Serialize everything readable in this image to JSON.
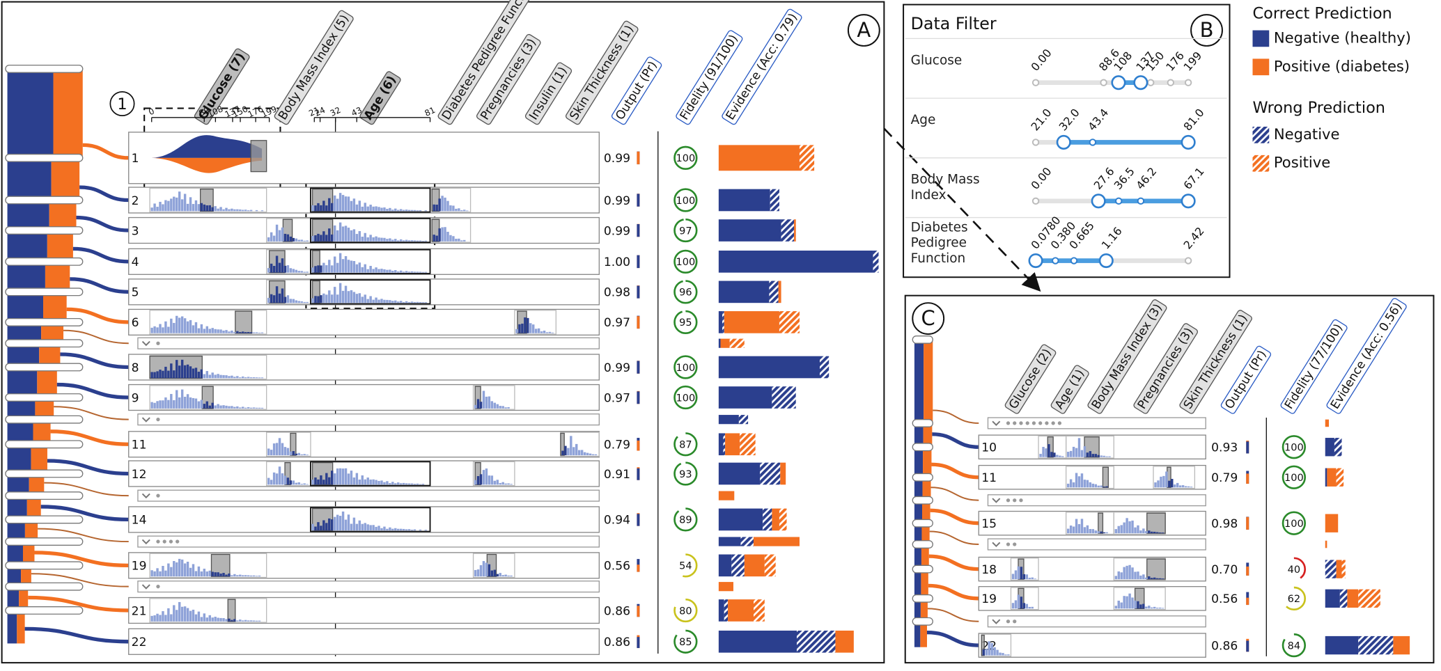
{
  "panel_a": {
    "label": "A",
    "markers": [
      "1",
      "2"
    ],
    "columns": [
      "Glucose (7)",
      "Body Mass Index (5)",
      "Age (6)",
      "Diabetes Pedigree Function",
      "Pregnancies (3)",
      "Insulin (1)",
      "Skin Thickness (1)",
      "Output (Pr)",
      "Fidelity (91/100)",
      "Evidence (Acc: 0.79)"
    ],
    "glucose_ticks": [
      0,
      89,
      108,
      137,
      150,
      176,
      199
    ],
    "age_ticks": [
      21,
      24,
      32,
      43,
      81
    ],
    "rows": [
      {
        "id": "1",
        "output": 0.99,
        "color": "#f37021",
        "fidelity": 100,
        "evidence": [
          0,
          0,
          88,
          16
        ]
      },
      {
        "id": "2",
        "output": 0.99,
        "color": "#2b3f8e",
        "fidelity": 100,
        "evidence": [
          56,
          10,
          0,
          0
        ]
      },
      {
        "id": "3",
        "output": 0.99,
        "color": "#2b3f8e",
        "fidelity": 97,
        "evidence": [
          68,
          14,
          2,
          0
        ]
      },
      {
        "id": "4",
        "output": 1,
        "output_label": "1.00",
        "color": "#2b3f8e",
        "fidelity": 100,
        "evidence": [
          168,
          6,
          0,
          0
        ]
      },
      {
        "id": "5",
        "output": 0.98,
        "color": "#2b3f8e",
        "fidelity": 96,
        "evidence": [
          55,
          10,
          3,
          0
        ]
      },
      {
        "id": "6",
        "output": 0.97,
        "color": "#f37021",
        "fidelity": 95,
        "evidence": [
          4,
          2,
          60,
          22
        ]
      },
      {
        "id": null,
        "evidence": [
          2,
          0,
          10,
          16
        ]
      },
      {
        "id": "8",
        "output": 0.99,
        "color": "#2b3f8e",
        "fidelity": 100,
        "evidence": [
          110,
          10,
          0,
          0
        ]
      },
      {
        "id": "9",
        "output": 0.97,
        "color": "#2b3f8e",
        "fidelity": 100,
        "evidence": [
          58,
          26,
          0,
          0
        ]
      },
      {
        "id": null,
        "evidence": [
          22,
          10,
          0,
          0
        ]
      },
      {
        "id": "11",
        "output": 0.79,
        "color": "#f37021",
        "fidelity": 87,
        "evidence": [
          5,
          2,
          16,
          17
        ]
      },
      {
        "id": "12",
        "output": 0.91,
        "color": "#2b3f8e",
        "fidelity": 93,
        "evidence": [
          45,
          22,
          6,
          0
        ]
      },
      {
        "id": null,
        "evidence": [
          0,
          0,
          17,
          0
        ]
      },
      {
        "id": "14",
        "output": 0.94,
        "color": "#2b3f8e",
        "fidelity": 89,
        "evidence": [
          48,
          10,
          8,
          8
        ]
      },
      {
        "id": null,
        "evidence": [
          24,
          14,
          50,
          0
        ]
      },
      {
        "id": "19",
        "output": 0.56,
        "color": "#f37021",
        "fidelity": 54,
        "evidence": [
          14,
          14,
          22,
          12
        ]
      },
      {
        "id": null,
        "evidence": [
          0,
          0,
          16,
          0
        ]
      },
      {
        "id": "21",
        "output": 0.86,
        "color": "#f37021",
        "fidelity": 80,
        "evidence": [
          6,
          4,
          28,
          12
        ]
      },
      {
        "id": "22",
        "output": 0.86,
        "color": "#2b3f8e",
        "fidelity": 85,
        "evidence": [
          85,
          42,
          20,
          0
        ]
      }
    ]
  },
  "panel_b": {
    "label": "B",
    "title": "Data Filter",
    "filters": [
      {
        "name": "Glucose",
        "ticks": [
          {
            "value": 0,
            "label": "0.00"
          },
          88.6,
          108,
          137,
          150,
          176,
          199
        ],
        "selected": [
          108,
          137
        ]
      },
      {
        "name": "Age",
        "ticks": [
          {
            "value": 21,
            "label": "21.0"
          },
          {
            "value": 32,
            "label": "32.0"
          },
          43.4,
          {
            "value": 81,
            "label": "81.0"
          }
        ],
        "selected": [
          32,
          81
        ]
      },
      {
        "name": "Body Mass Index",
        "ticks": [
          {
            "value": 0,
            "label": "0.00"
          },
          27.6,
          36.5,
          46.2,
          67.1
        ],
        "selected": [
          27.6,
          67.1
        ]
      },
      {
        "name": "Diabetes Pedigree Function",
        "ticks": [
          {
            "value": 0.078,
            "label": "0.0780"
          },
          {
            "value": 0.38,
            "label": "0.380"
          },
          0.665,
          1.16,
          2.42
        ],
        "selected": [
          0.078,
          1.16
        ]
      }
    ]
  },
  "legend": {
    "correct": "Correct Prediction",
    "correct_items": [
      {
        "name": "Negative (healthy)",
        "color": "#2b3f8e"
      },
      {
        "name": "Positive (diabetes)",
        "color": "#f37021"
      }
    ],
    "wrong": "Wrong Prediction",
    "wrong_items": [
      {
        "name": "Negative",
        "color": "#2b3f8e"
      },
      {
        "name": "Positive",
        "color": "#f37021"
      }
    ]
  },
  "panel_c": {
    "label": "C",
    "columns": [
      "Glucose (2)",
      "Age (1)",
      "Body Mass Index (3)",
      "Pregnancies (3)",
      "Skin Thickness (1)",
      "Output (Pr)",
      "Fidelity (77/100)",
      "Evidence (Acc: 0.56)"
    ],
    "rows": [
      {
        "id": null,
        "evidence": [
          0,
          0,
          4,
          0
        ]
      },
      {
        "id": "10",
        "output": 0.93,
        "color": "#2b3f8e",
        "fidelity": 100,
        "evidence": [
          10,
          8,
          0,
          0
        ]
      },
      {
        "id": "11",
        "output": 0.79,
        "color": "#f37021",
        "fidelity": 100,
        "evidence": [
          2,
          0,
          10,
          8
        ]
      },
      {
        "id": null
      },
      {
        "id": "15",
        "output": 0.98,
        "color": "#f37021",
        "fidelity": 100,
        "evidence": [
          0,
          0,
          14,
          0
        ]
      },
      {
        "id": null,
        "evidence": [
          0,
          0,
          2,
          0
        ]
      },
      {
        "id": "18",
        "output": 0.7,
        "output_label": "0.70",
        "color": "#f37021",
        "fidelity": 40,
        "evidence": [
          0,
          12,
          6,
          4
        ]
      },
      {
        "id": "19",
        "output": 0.56,
        "color": "#f37021",
        "fidelity": 62,
        "evidence": [
          16,
          8,
          12,
          24
        ]
      },
      {
        "id": null
      },
      {
        "id": "22",
        "output": 0.86,
        "color": "#2b3f8e",
        "fidelity": 84,
        "evidence": [
          36,
          38,
          18,
          0
        ]
      }
    ]
  }
}
